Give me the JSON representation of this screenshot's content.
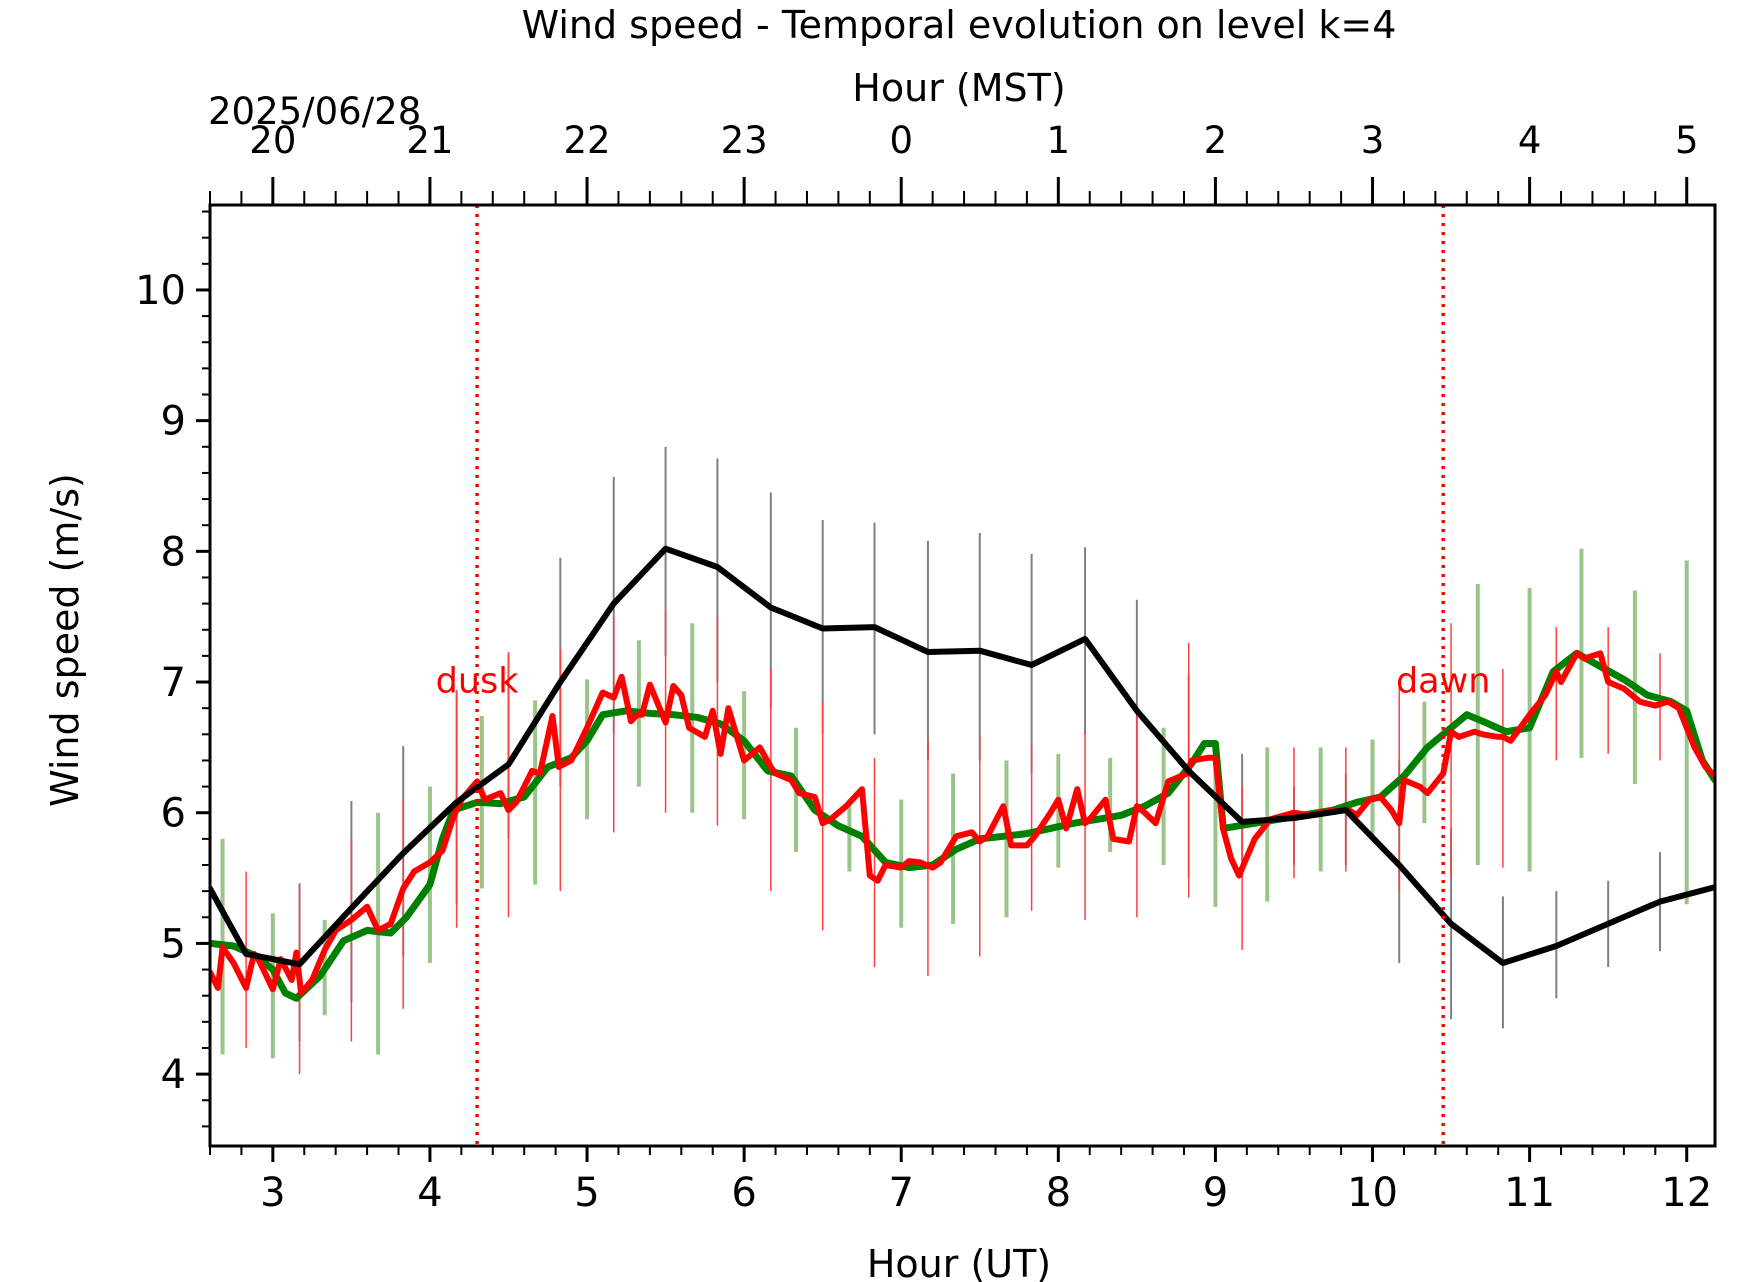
{
  "chart_data": {
    "type": "line",
    "title": "Wind speed - Temporal evolution on level k=4",
    "xlabel": "Hour (UT)",
    "ylabel": "Wind speed (m/s)",
    "top_axis": {
      "label": "Hour (MST)",
      "date": "2025/06/28",
      "ticks": [
        {
          "ut": 3,
          "label": "20"
        },
        {
          "ut": 4,
          "label": "21"
        },
        {
          "ut": 5,
          "label": "22"
        },
        {
          "ut": 6,
          "label": "23"
        },
        {
          "ut": 7,
          "label": "0"
        },
        {
          "ut": 8,
          "label": "1"
        },
        {
          "ut": 9,
          "label": "2"
        },
        {
          "ut": 10,
          "label": "3"
        },
        {
          "ut": 11,
          "label": "4"
        },
        {
          "ut": 12,
          "label": "5"
        }
      ]
    },
    "xlim": [
      2.6,
      12.18
    ],
    "ylim": [
      3.45,
      10.65
    ],
    "xticks": [
      3,
      4,
      5,
      6,
      7,
      8,
      9,
      10,
      11,
      12
    ],
    "yticks": [
      4,
      5,
      6,
      7,
      8,
      9,
      10
    ],
    "grid": false,
    "annotations": [
      {
        "x": 4.3,
        "text": "dusk",
        "color": "#ff0000"
      },
      {
        "x": 10.45,
        "text": "dawn",
        "color": "#ff0000"
      }
    ],
    "series": [
      {
        "color": "#000000",
        "errorbar_color": "#808080",
        "x": [
          2.6,
          2.83,
          3.17,
          3.5,
          3.83,
          4.17,
          4.5,
          4.83,
          5.17,
          5.5,
          5.83,
          6.17,
          6.5,
          6.83,
          7.17,
          7.5,
          7.83,
          8.17,
          8.5,
          8.83,
          9.17,
          9.5,
          9.83,
          10.17,
          10.5,
          10.83,
          11.17,
          11.5,
          11.83,
          12.18
        ],
        "y": [
          5.42,
          4.92,
          4.84,
          5.27,
          5.69,
          6.08,
          6.37,
          7.0,
          7.6,
          8.02,
          7.88,
          7.57,
          7.41,
          7.42,
          7.23,
          7.24,
          7.13,
          7.33,
          6.78,
          6.32,
          5.93,
          5.96,
          6.02,
          5.6,
          5.15,
          4.85,
          4.98,
          5.15,
          5.32,
          5.43
        ],
        "error_low": [
          null,
          null,
          4.25,
          4.55,
          4.9,
          5.3,
          5.8,
          6.2,
          6.6,
          7.2,
          7.0,
          6.8,
          6.6,
          6.6,
          6.4,
          6.4,
          6.3,
          6.6,
          6.0,
          5.5,
          5.5,
          5.6,
          5.6,
          4.85,
          4.42,
          4.35,
          4.58,
          4.82,
          4.94,
          null
        ],
        "error_high": [
          null,
          null,
          5.46,
          6.09,
          6.51,
          6.94,
          7.21,
          7.95,
          8.57,
          8.8,
          8.71,
          8.45,
          8.24,
          8.22,
          8.08,
          8.14,
          7.98,
          8.03,
          7.63,
          7.06,
          6.45,
          6.2,
          6.3,
          6.4,
          5.88,
          5.36,
          5.4,
          5.48,
          5.7,
          null
        ]
      },
      {
        "color": "#008000",
        "errorbar_color": "#9ac48a",
        "x": [
          2.6,
          2.75,
          2.9,
          3.0,
          3.08,
          3.15,
          3.3,
          3.45,
          3.6,
          3.75,
          3.85,
          4.0,
          4.08,
          4.15,
          4.3,
          4.45,
          4.6,
          4.75,
          4.9,
          5.0,
          5.1,
          5.25,
          5.4,
          5.55,
          5.7,
          5.85,
          6.0,
          6.15,
          6.3,
          6.45,
          6.6,
          6.75,
          6.9,
          7.05,
          7.2,
          7.35,
          7.5,
          7.65,
          7.8,
          7.95,
          8.1,
          8.25,
          8.4,
          8.55,
          8.7,
          8.85,
          8.93,
          9.0,
          9.05,
          9.15,
          9.3,
          9.45,
          9.6,
          9.75,
          9.9,
          10.05,
          10.2,
          10.35,
          10.5,
          10.6,
          10.7,
          10.85,
          11.0,
          11.15,
          11.3,
          11.45,
          11.6,
          11.75,
          11.9,
          12.0,
          12.1,
          12.18
        ],
        "y": [
          5.0,
          4.98,
          4.9,
          4.8,
          4.62,
          4.58,
          4.75,
          5.02,
          5.1,
          5.08,
          5.2,
          5.45,
          5.8,
          6.02,
          6.08,
          6.07,
          6.12,
          6.35,
          6.42,
          6.55,
          6.75,
          6.78,
          6.76,
          6.75,
          6.73,
          6.68,
          6.55,
          6.32,
          6.28,
          6.02,
          5.9,
          5.82,
          5.62,
          5.58,
          5.6,
          5.72,
          5.8,
          5.82,
          5.84,
          5.88,
          5.92,
          5.95,
          5.98,
          6.05,
          6.15,
          6.38,
          6.53,
          6.53,
          5.88,
          5.9,
          5.93,
          5.96,
          5.99,
          6.02,
          6.08,
          6.12,
          6.28,
          6.5,
          6.65,
          6.75,
          6.7,
          6.62,
          6.65,
          7.08,
          7.22,
          7.12,
          7.02,
          6.9,
          6.85,
          6.78,
          6.4,
          6.25
        ],
        "errorbar_x": [
          2.68,
          3.0,
          3.33,
          3.67,
          4.0,
          4.33,
          4.67,
          5.0,
          5.33,
          5.67,
          6.0,
          6.33,
          6.67,
          7.0,
          7.33,
          7.67,
          8.0,
          8.33,
          8.67,
          9.0,
          9.33,
          9.67,
          10.0,
          10.33,
          10.67,
          11.0,
          11.33,
          11.67,
          12.0
        ],
        "error_low": [
          4.15,
          4.12,
          4.45,
          4.15,
          4.85,
          5.42,
          5.45,
          5.95,
          6.2,
          6.0,
          5.95,
          5.7,
          5.55,
          5.12,
          5.15,
          5.2,
          5.58,
          5.7,
          5.6,
          5.28,
          5.32,
          5.55,
          5.8,
          5.92,
          5.6,
          5.55,
          6.42,
          6.22,
          5.3
        ],
        "error_high": [
          5.8,
          5.23,
          5.18,
          6.0,
          6.2,
          6.74,
          6.86,
          7.02,
          7.32,
          7.45,
          6.93,
          6.65,
          6.1,
          6.1,
          6.3,
          6.4,
          6.45,
          6.42,
          6.65,
          6.45,
          6.5,
          6.5,
          6.56,
          6.85,
          7.75,
          7.72,
          8.02,
          7.7,
          7.93
        ]
      },
      {
        "color": "#ff0000",
        "errorbar_color": "#ff4040",
        "x": [
          2.6,
          2.65,
          2.68,
          2.75,
          2.83,
          2.88,
          2.9,
          3.0,
          3.05,
          3.12,
          3.15,
          3.18,
          3.25,
          3.33,
          3.4,
          3.5,
          3.6,
          3.67,
          3.75,
          3.83,
          3.9,
          4.0,
          4.08,
          4.15,
          4.2,
          4.3,
          4.35,
          4.45,
          4.5,
          4.55,
          4.65,
          4.7,
          4.78,
          4.82,
          4.85,
          4.9,
          5.0,
          5.1,
          5.17,
          5.22,
          5.28,
          5.32,
          5.35,
          5.4,
          5.5,
          5.55,
          5.6,
          5.65,
          5.75,
          5.8,
          5.85,
          5.9,
          6.0,
          6.1,
          6.17,
          6.2,
          6.3,
          6.35,
          6.45,
          6.5,
          6.55,
          6.65,
          6.75,
          6.8,
          6.85,
          6.9,
          7.0,
          7.05,
          7.12,
          7.2,
          7.25,
          7.35,
          7.45,
          7.5,
          7.55,
          7.65,
          7.7,
          7.8,
          7.85,
          7.95,
          8.0,
          8.05,
          8.12,
          8.17,
          8.2,
          8.3,
          8.35,
          8.45,
          8.5,
          8.55,
          8.62,
          8.7,
          8.82,
          8.85,
          8.95,
          9.0,
          9.05,
          9.1,
          9.15,
          9.25,
          9.35,
          9.5,
          9.6,
          9.75,
          9.85,
          9.9,
          9.98,
          10.05,
          10.12,
          10.17,
          10.2,
          10.3,
          10.35,
          10.45,
          10.5,
          10.55,
          10.65,
          10.7,
          10.8,
          10.83,
          10.88,
          11.0,
          11.1,
          11.17,
          11.2,
          11.3,
          11.35,
          11.45,
          11.5,
          11.6,
          11.7,
          11.8,
          11.88,
          11.95,
          12.05,
          12.12,
          12.18
        ],
        "y": [
          4.78,
          4.66,
          4.97,
          4.85,
          4.66,
          4.92,
          4.9,
          4.65,
          4.88,
          4.72,
          4.93,
          4.62,
          4.72,
          4.95,
          5.1,
          5.18,
          5.28,
          5.1,
          5.15,
          5.42,
          5.55,
          5.62,
          5.71,
          5.97,
          6.1,
          6.24,
          6.1,
          6.15,
          6.02,
          6.08,
          6.32,
          6.3,
          6.74,
          6.35,
          6.37,
          6.4,
          6.65,
          6.92,
          6.88,
          7.04,
          6.7,
          6.75,
          6.75,
          6.98,
          6.69,
          6.97,
          6.9,
          6.65,
          6.58,
          6.78,
          6.45,
          6.8,
          6.4,
          6.5,
          6.35,
          6.3,
          6.25,
          6.15,
          6.12,
          5.92,
          5.95,
          6.05,
          6.18,
          5.52,
          5.48,
          5.6,
          5.58,
          5.63,
          5.62,
          5.58,
          5.62,
          5.82,
          5.85,
          5.78,
          5.82,
          6.05,
          5.75,
          5.75,
          5.82,
          6.0,
          6.1,
          5.88,
          6.18,
          5.92,
          5.95,
          6.1,
          5.8,
          5.78,
          6.05,
          6.0,
          5.92,
          6.24,
          6.3,
          6.4,
          6.42,
          6.42,
          5.87,
          5.65,
          5.52,
          5.8,
          5.95,
          6.0,
          5.98,
          6.02,
          6.02,
          5.98,
          6.1,
          6.12,
          6.02,
          5.92,
          6.25,
          6.2,
          6.15,
          6.3,
          6.62,
          6.58,
          6.62,
          6.6,
          6.58,
          6.58,
          6.55,
          6.75,
          6.9,
          7.08,
          7.0,
          7.22,
          7.18,
          7.22,
          7.0,
          6.95,
          6.85,
          6.82,
          6.85,
          6.8,
          6.5,
          6.35,
          6.28
        ],
        "errorbar_x": [
          2.83,
          3.17,
          3.5,
          3.83,
          4.17,
          4.5,
          4.83,
          5.17,
          5.5,
          5.83,
          6.17,
          6.5,
          6.83,
          7.17,
          7.5,
          7.83,
          8.17,
          8.5,
          8.83,
          9.17,
          9.5,
          9.83,
          10.17,
          10.5,
          10.83,
          11.17,
          11.5,
          11.83
        ],
        "error_low": [
          4.2,
          4.0,
          4.25,
          4.5,
          5.12,
          5.2,
          5.4,
          5.85,
          6.0,
          5.9,
          5.4,
          5.1,
          4.82,
          4.75,
          4.9,
          5.25,
          5.18,
          5.2,
          5.35,
          4.95,
          5.5,
          5.55,
          5.4,
          5.5,
          5.58,
          6.4,
          6.45,
          6.4
        ],
        "error_high": [
          5.55,
          5.45,
          5.8,
          6.1,
          6.92,
          7.23,
          7.25,
          7.5,
          7.55,
          7.5,
          7.1,
          6.85,
          6.42,
          6.55,
          6.6,
          6.52,
          6.62,
          6.82,
          7.3,
          6.2,
          6.5,
          6.5,
          7.0,
          7.45,
          7.1,
          7.42,
          7.42,
          7.22
        ]
      }
    ]
  }
}
